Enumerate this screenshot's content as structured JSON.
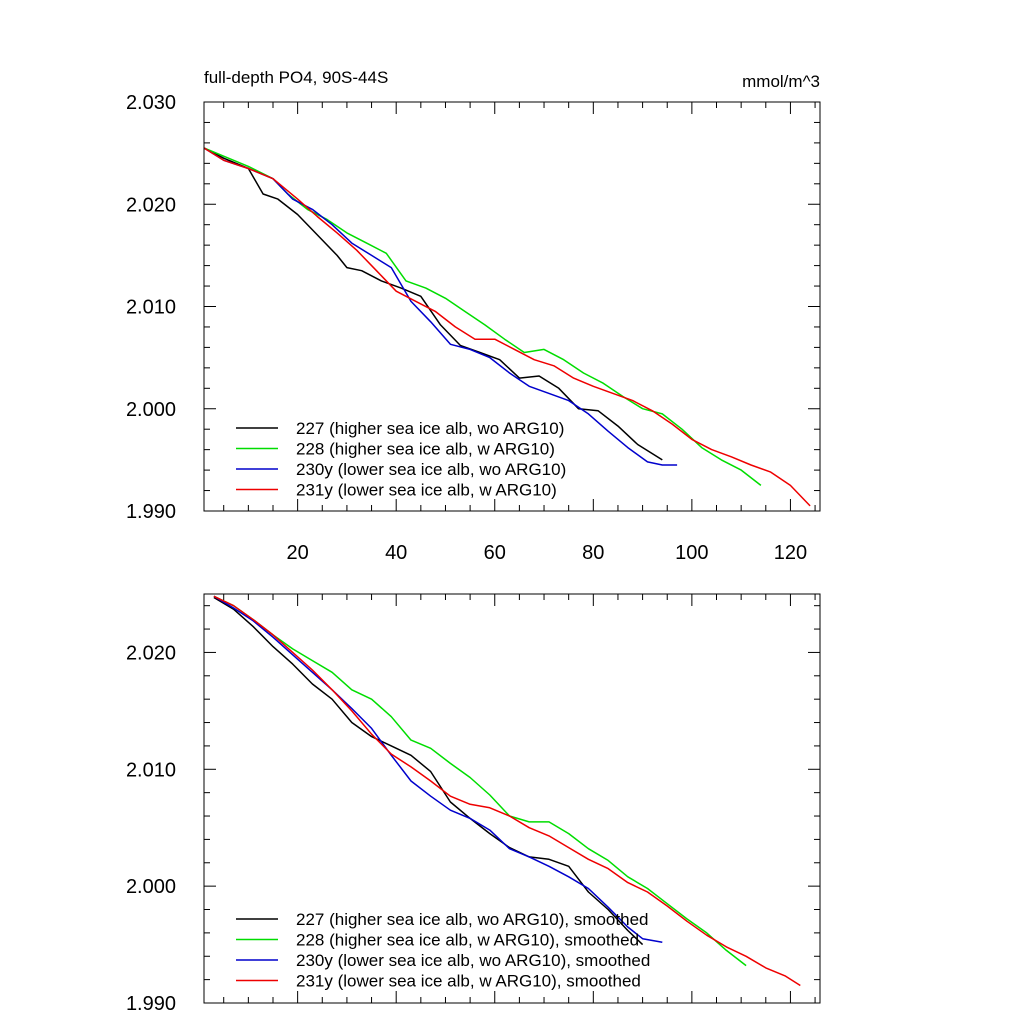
{
  "chart_data": [
    {
      "type": "line",
      "title": "full-depth PO4, 90S-44S",
      "units": "mmol/m^3",
      "xlim": [
        1,
        126
      ],
      "ylim": [
        1.99,
        2.03
      ],
      "x_ticks": [
        20,
        40,
        60,
        80,
        100,
        120
      ],
      "x_tick_labels": [
        "20",
        "40",
        "60",
        "80",
        "100",
        "120"
      ],
      "y_ticks": [
        1.99,
        2.0,
        2.01,
        2.02,
        2.03
      ],
      "y_tick_labels": [
        "1.990",
        "2.000",
        "2.010",
        "2.020",
        "2.030"
      ],
      "legend": [
        "227 (higher sea ice alb, wo ARG10)",
        "228 (higher sea ice alb, w ARG10)",
        "230y (lower sea ice alb, wo ARG10)",
        "231y (lower sea ice alb, w ARG10)"
      ],
      "series": [
        {
          "name": "227 (higher sea ice alb, wo ARG10)",
          "color": "#000000",
          "x": [
            1,
            5,
            10,
            13,
            16,
            20,
            24,
            28,
            30,
            33,
            37,
            41,
            45,
            49,
            53,
            57,
            61,
            65,
            69,
            73,
            77,
            81,
            85,
            89,
            94
          ],
          "y": [
            2.0255,
            2.0245,
            2.0235,
            2.021,
            2.0205,
            2.019,
            2.017,
            2.015,
            2.0138,
            2.0135,
            2.0125,
            2.0118,
            2.011,
            2.0082,
            2.0062,
            2.0055,
            2.0048,
            2.003,
            2.0032,
            2.002,
            2.0,
            1.9998,
            1.9983,
            1.9965,
            1.995
          ]
        },
        {
          "name": "228 (higher sea ice alb, w ARG10)",
          "color": "#00dd00",
          "x": [
            1,
            5,
            10,
            15,
            18,
            22,
            26,
            30,
            34,
            38,
            42,
            46,
            50,
            54,
            58,
            62,
            66,
            70,
            74,
            78,
            82,
            86,
            90,
            94,
            98,
            102,
            106,
            110,
            114
          ],
          "y": [
            2.0255,
            2.0247,
            2.0237,
            2.0225,
            2.021,
            2.0195,
            2.0185,
            2.0172,
            2.0162,
            2.0152,
            2.0125,
            2.0118,
            2.0108,
            2.0095,
            2.0082,
            2.0068,
            2.0055,
            2.0058,
            2.0048,
            2.0035,
            2.0025,
            2.0012,
            2.0,
            1.9995,
            1.998,
            1.9962,
            1.995,
            1.994,
            1.9925
          ]
        },
        {
          "name": "230y (lower sea ice alb, wo ARG10)",
          "color": "#0000cc",
          "x": [
            1,
            5,
            10,
            15,
            19,
            23,
            27,
            31,
            35,
            39,
            43,
            47,
            51,
            55,
            59,
            63,
            67,
            71,
            75,
            79,
            83,
            87,
            91,
            94,
            97
          ],
          "y": [
            2.0255,
            2.0243,
            2.0235,
            2.0225,
            2.0205,
            2.0195,
            2.018,
            2.0162,
            2.015,
            2.0138,
            2.0105,
            2.0085,
            2.0063,
            2.0058,
            2.005,
            2.0035,
            2.0022,
            2.0015,
            2.0008,
            1.9995,
            1.9978,
            1.9962,
            1.9948,
            1.9945,
            1.9945
          ]
        },
        {
          "name": "231y (lower sea ice alb, w ARG10)",
          "color": "#ee0000",
          "x": [
            1,
            5,
            10,
            15,
            20,
            24,
            28,
            32,
            36,
            40,
            44,
            48,
            52,
            56,
            60,
            64,
            68,
            72,
            76,
            80,
            84,
            88,
            92,
            96,
            100,
            104,
            108,
            112,
            116,
            120,
            124
          ],
          "y": [
            2.0255,
            2.0243,
            2.0235,
            2.0225,
            2.0205,
            2.0188,
            2.0172,
            2.0155,
            2.0135,
            2.0115,
            2.0105,
            2.0095,
            2.008,
            2.0068,
            2.0068,
            2.0058,
            2.0048,
            2.0042,
            2.003,
            2.0022,
            2.0015,
            2.0008,
            1.9998,
            1.9985,
            1.997,
            1.996,
            1.9953,
            1.9945,
            1.9938,
            1.9925,
            1.9905
          ]
        }
      ]
    },
    {
      "type": "line",
      "xlim": [
        1,
        126
      ],
      "ylim": [
        1.99,
        2.025
      ],
      "y_ticks": [
        1.99,
        2.0,
        2.01,
        2.02
      ],
      "y_tick_labels": [
        "1.990",
        "2.000",
        "2.010",
        "2.020"
      ],
      "legend": [
        "227 (higher sea ice alb, wo ARG10), smoothed",
        "228 (higher sea ice alb, w ARG10), smoothed",
        "230y (lower sea ice alb, wo ARG10), smoothed",
        "231y (lower sea ice alb, w ARG10), smoothed"
      ],
      "series": [
        {
          "name": "227 (higher sea ice alb, wo ARG10), smoothed",
          "color": "#000000",
          "x": [
            3,
            7,
            11,
            15,
            19,
            23,
            27,
            31,
            35,
            39,
            43,
            47,
            51,
            55,
            59,
            63,
            67,
            71,
            75,
            79,
            83,
            87,
            90
          ],
          "y": [
            2.0247,
            2.0237,
            2.0222,
            2.0205,
            2.019,
            2.0173,
            2.016,
            2.014,
            2.0128,
            2.012,
            2.0112,
            2.0098,
            2.0072,
            2.0058,
            2.0045,
            2.0033,
            2.0025,
            2.0023,
            2.0017,
            1.9995,
            1.998,
            1.9962,
            1.995
          ]
        },
        {
          "name": "228 (higher sea ice alb, w ARG10), smoothed",
          "color": "#00dd00",
          "x": [
            3,
            7,
            11,
            15,
            19,
            23,
            27,
            31,
            35,
            39,
            43,
            47,
            51,
            55,
            59,
            63,
            67,
            71,
            75,
            79,
            83,
            87,
            91,
            95,
            99,
            103,
            107,
            111
          ],
          "y": [
            2.0248,
            2.024,
            2.0228,
            2.0215,
            2.0203,
            2.0193,
            2.0183,
            2.0168,
            2.016,
            2.0145,
            2.0125,
            2.0118,
            2.0105,
            2.0093,
            2.0078,
            2.006,
            2.0055,
            2.0055,
            2.0045,
            2.0032,
            2.0022,
            2.0008,
            1.9998,
            1.9985,
            1.9972,
            1.996,
            1.9945,
            1.9932
          ]
        },
        {
          "name": "230y (lower sea ice alb, wo ARG10), smoothed",
          "color": "#0000cc",
          "x": [
            3,
            7,
            11,
            15,
            19,
            23,
            27,
            31,
            35,
            39,
            43,
            47,
            51,
            55,
            59,
            63,
            67,
            71,
            75,
            79,
            83,
            87,
            90,
            94
          ],
          "y": [
            2.0248,
            2.0238,
            2.0227,
            2.0213,
            2.0198,
            2.0183,
            2.0168,
            2.0152,
            2.0135,
            2.0112,
            2.009,
            2.0077,
            2.0065,
            2.0058,
            2.0048,
            2.0032,
            2.0025,
            2.0017,
            2.0008,
            1.9998,
            1.9982,
            1.9965,
            1.9955,
            1.9952
          ]
        },
        {
          "name": "231y (lower sea ice alb, w ARG10), smoothed",
          "color": "#ee0000",
          "x": [
            3,
            7,
            11,
            15,
            19,
            23,
            27,
            31,
            35,
            39,
            43,
            47,
            51,
            55,
            59,
            63,
            67,
            71,
            75,
            79,
            83,
            87,
            91,
            95,
            99,
            103,
            107,
            111,
            115,
            119,
            122
          ],
          "y": [
            2.0248,
            2.024,
            2.0228,
            2.0215,
            2.02,
            2.0185,
            2.0168,
            2.015,
            2.013,
            2.0113,
            2.0102,
            2.009,
            2.0077,
            2.007,
            2.0067,
            2.006,
            2.005,
            2.0043,
            2.0033,
            2.0023,
            2.0015,
            2.0003,
            1.9995,
            1.9983,
            1.997,
            1.9958,
            1.9948,
            1.994,
            1.993,
            1.9923,
            1.9915
          ]
        }
      ]
    }
  ]
}
